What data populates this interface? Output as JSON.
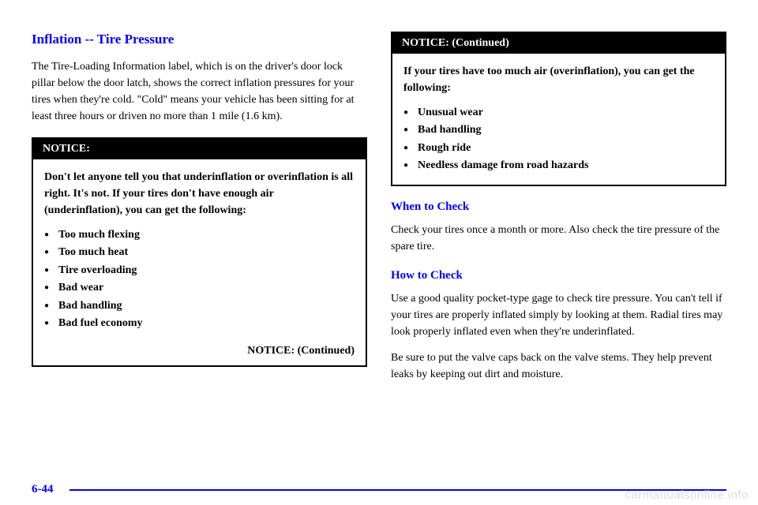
{
  "left": {
    "heading": "Inflation -- Tire Pressure",
    "para1": "The Tire-Loading Information label, which is on the driver's door lock pillar below the door latch, shows the correct inflation pressures for your tires when they're cold. \"Cold\" means your vehicle has been sitting for at least three hours or driven no more than 1 mile (1.6 km).",
    "notice": {
      "header": "NOTICE:",
      "intro": "Don't let anyone tell you that underinflation or overinflation is all right. It's not. If your tires don't have enough air (underinflation), you can get the following:",
      "items": [
        "Too much flexing",
        "Too much heat",
        "Tire overloading",
        "Bad wear",
        "Bad handling",
        "Bad fuel economy"
      ],
      "footer": "NOTICE: (Continued)"
    }
  },
  "right": {
    "notice": {
      "header": "NOTICE: (Continued)",
      "intro": "If your tires have too much air (overinflation), you can get the following:",
      "items": [
        "Unusual wear",
        "Bad handling",
        "Rough ride",
        "Needless damage from road hazards"
      ]
    },
    "when_heading": "When to Check",
    "when_text": "Check your tires once a month or more. Also check the tire pressure of the spare tire.",
    "how_heading": "How to Check",
    "how_text1": "Use a good quality pocket-type gage to check tire pressure. You can't tell if your tires are properly inflated simply by looking at them. Radial tires may look properly inflated even when they're underinflated.",
    "how_text2": "Be sure to put the valve caps back on the valve stems. They help prevent leaks by keeping out dirt and moisture."
  },
  "page_number": "6-44",
  "watermark": "carmanualsonline.info",
  "colors": {
    "link_blue": "#0000ff",
    "watermark_gray": "#dddddd"
  }
}
